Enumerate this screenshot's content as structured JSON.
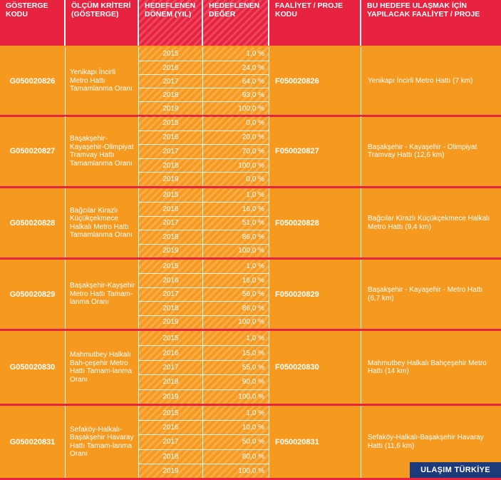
{
  "header": {
    "col1": "GÖSTERGE KODU",
    "col2": "ÖLÇÜM KRİTERİ (GÖSTERGE)",
    "col3": "HEDEFLENEN DÖNEM (YIL)",
    "col4": "HEDEFLENEN DEĞER",
    "col5": "FAALİYET / PROJE KODU",
    "col6": "BU HEDEFE ULAŞMAK İÇİN YAPILACAK FAALİYET / PROJE"
  },
  "rows": [
    {
      "code": "G050020826",
      "criterion": "Yenikapı İncirli Metro Hattı Tamamlanma Oranı",
      "years": [
        "2015",
        "2016",
        "2017",
        "2018",
        "2019"
      ],
      "values": [
        "1,0 %",
        "24,0 %",
        "64,0 %",
        "93,0 %",
        "100,0 %"
      ],
      "project_code": "F050020826",
      "project": "Yenikapı İncirli Metro Hattı (7 km)"
    },
    {
      "code": "G050020827",
      "criterion": "Başakşehir-Kayaşehir-Olimpiyat Tramvay Hattı Tamamlanma Oranı",
      "years": [
        "2015",
        "2016",
        "2017",
        "2018",
        "2019"
      ],
      "values": [
        "0,0 %",
        "20,0 %",
        "70,0 %",
        "100,0 %",
        "0,0 %"
      ],
      "project_code": "F050020827",
      "project": "Başakşehir - Kayaşehir - Olimpiyat Tramvay Hattı (12,6 km)"
    },
    {
      "code": "G050020828",
      "criterion": "Bağcılar Kirazlı Küçükçekmece Halkalı Metro Hattı Tamamlanma Oranı",
      "years": [
        "2015",
        "2016",
        "2017",
        "2018",
        "2019"
      ],
      "values": [
        "1,0 %",
        "16,0 %",
        "51,0 %",
        "86,0 %",
        "100,0 %"
      ],
      "project_code": "F050020828",
      "project": "Bağcılar Kirazlı Küçükçekmece Halkalı Metro Hattı (9,4 km)"
    },
    {
      "code": "G050020829",
      "criterion": "Başakşehir-Kayşehir Metro Hattı Tamam-lanma Oranı",
      "years": [
        "2015",
        "2016",
        "2017",
        "2018",
        "2019"
      ],
      "values": [
        "1,0 %",
        "16,0 %",
        "56,0 %",
        "86,0 %",
        "100,0 %"
      ],
      "project_code": "F050020829",
      "project": "Başakşehir - Kayaşehir - Metro Hattı (6,7 km)"
    },
    {
      "code": "G050020830",
      "criterion": "Mahmutbey Halkalı Bah-çeşehir Metro Hattı Tamam-lanma Oranı",
      "years": [
        "2015",
        "2016",
        "2017",
        "2018",
        "2019"
      ],
      "values": [
        "1,0 %",
        "15,0 %",
        "55,0 %",
        "90,0 %",
        "100,0 %"
      ],
      "project_code": "F050020830",
      "project": "Mahmutbey Halkalı Bahçeşehir Metro Hattı (14 km)"
    },
    {
      "code": "G050020831",
      "criterion": "Sefaköy-Halkalı-Başakşehir Havaray Hattı Tamam-lanma Oranı",
      "years": [
        "2015",
        "2016",
        "2017",
        "2018",
        "2019"
      ],
      "values": [
        "1,0 %",
        "10,0 %",
        "50,0 %",
        "80,0 %",
        "100,0 %"
      ],
      "project_code": "F050020831",
      "project": "Sefaköy-Halkalı-Başakşehir Havaray Hattı (11,6 km)"
    }
  ],
  "brand": "ULAŞIM TÜRKİYE",
  "colors": {
    "header_red": "#e8233f",
    "body_orange": "#f59a1f",
    "brand_blue": "#1d3a7a"
  }
}
